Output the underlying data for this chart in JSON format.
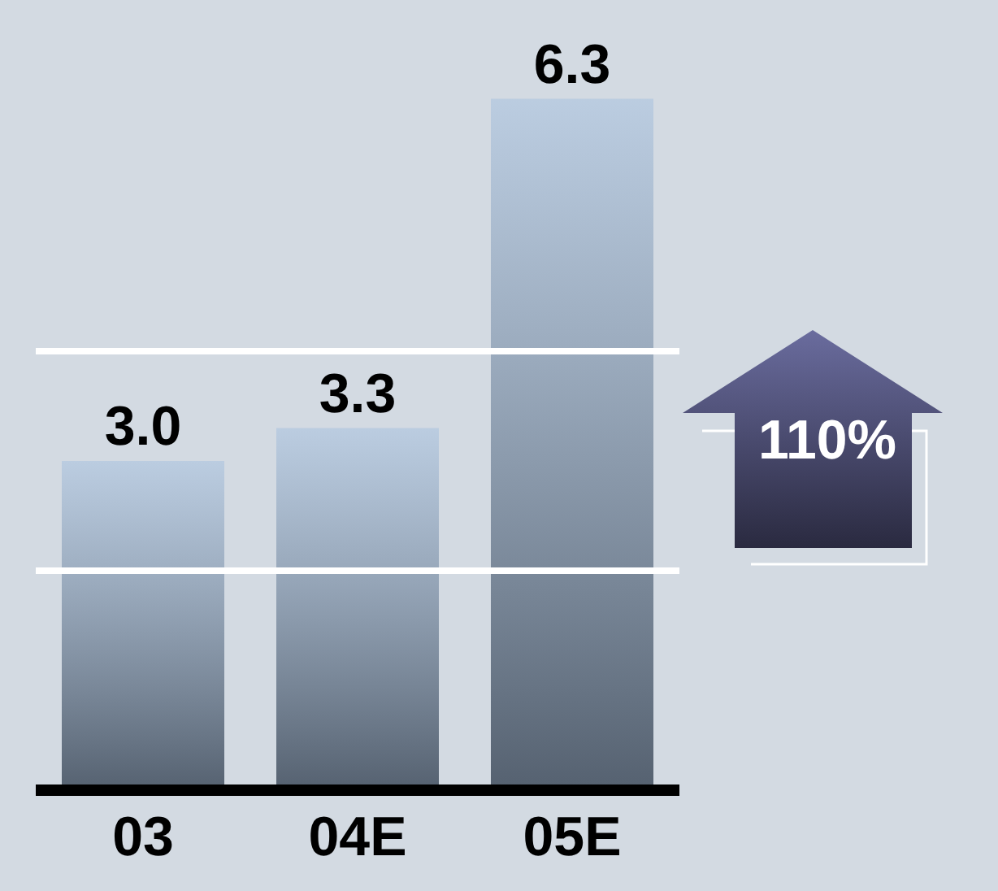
{
  "chart_data": {
    "type": "bar",
    "categories": [
      "03",
      "04E",
      "05E"
    ],
    "values": [
      3.0,
      3.3,
      6.3
    ],
    "value_labels": [
      "3.0",
      "3.3",
      "6.3"
    ],
    "color": "#b3c8e0",
    "ylim": [
      0,
      7.2
    ],
    "tick_labels": "x",
    "ref_lines": [
      {
        "axis": "y",
        "value": 2,
        "color": "#ffffff"
      },
      {
        "axis": "y",
        "value": 4,
        "color": "#ffffff"
      }
    ],
    "annotations": [
      "110%"
    ]
  }
}
